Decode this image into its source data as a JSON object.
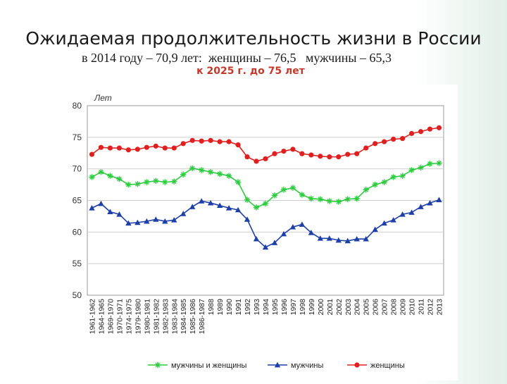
{
  "header": {
    "title": "Ожидаемая продолжительность жизни в России",
    "subtitle": "в 2014 году – 70,9 лет:  женщины – 76,5   мужчины – 65,3",
    "target": "к 2025 г. до 75 лет"
  },
  "chart_data": {
    "type": "line",
    "ylabel": "Лет",
    "ylim": [
      50,
      80
    ],
    "yticks": [
      50,
      55,
      60,
      65,
      70,
      75,
      80
    ],
    "grid": true,
    "legend_position": "bottom",
    "categories": [
      "1961-1962",
      "1964-1965",
      "1969-1970",
      "1970-1971",
      "1974-1975",
      "1979-1980",
      "1980-1981",
      "1981-1982",
      "1982-1983",
      "1983-1984",
      "1984-1985",
      "1985-1986",
      "1986-1987",
      "1988",
      "1989",
      "1990",
      "1991",
      "1992",
      "1993",
      "1994",
      "1995",
      "1996",
      "1997",
      "1998",
      "1999",
      "2000",
      "2001",
      "2002",
      "2003",
      "2004",
      "2005",
      "2006",
      "2007",
      "2008",
      "2009",
      "2010",
      "2011",
      "2012",
      "2013"
    ],
    "series": [
      {
        "name": "мужчины и женщины",
        "color": "#2ecc40",
        "marker": "star",
        "values": [
          68.7,
          69.5,
          68.9,
          68.4,
          67.5,
          67.6,
          67.9,
          68.1,
          67.9,
          68.0,
          69.1,
          70.1,
          69.8,
          69.5,
          69.2,
          68.9,
          67.9,
          65.1,
          63.9,
          64.5,
          65.8,
          66.7,
          67.0,
          65.9,
          65.3,
          65.2,
          64.9,
          64.8,
          65.2,
          65.3,
          66.7,
          67.5,
          67.9,
          68.7,
          68.9,
          69.8,
          70.2,
          70.8,
          70.9
        ]
      },
      {
        "name": "мужчины",
        "color": "#1f3fa8",
        "marker": "triangle",
        "values": [
          63.8,
          64.5,
          63.2,
          62.8,
          61.4,
          61.5,
          61.7,
          62.0,
          61.7,
          61.9,
          62.9,
          64.0,
          64.9,
          64.6,
          64.2,
          63.8,
          63.5,
          62.0,
          58.9,
          57.6,
          58.3,
          59.7,
          60.8,
          61.2,
          59.9,
          59.0,
          59.0,
          58.7,
          58.6,
          58.9,
          58.9,
          60.4,
          61.4,
          61.9,
          62.8,
          63.1,
          64.0,
          64.6,
          65.1
        ]
      },
      {
        "name": "женщины",
        "color": "#e02020",
        "marker": "circle",
        "values": [
          72.3,
          73.4,
          73.3,
          73.3,
          73.0,
          73.1,
          73.4,
          73.6,
          73.3,
          73.3,
          74.0,
          74.5,
          74.4,
          74.5,
          74.3,
          74.3,
          73.8,
          71.9,
          71.2,
          71.6,
          72.4,
          72.8,
          73.1,
          72.4,
          72.2,
          72.0,
          71.9,
          71.9,
          72.3,
          72.4,
          73.3,
          74.0,
          74.3,
          74.7,
          74.8,
          75.6,
          75.9,
          76.3,
          76.5
        ]
      }
    ]
  }
}
